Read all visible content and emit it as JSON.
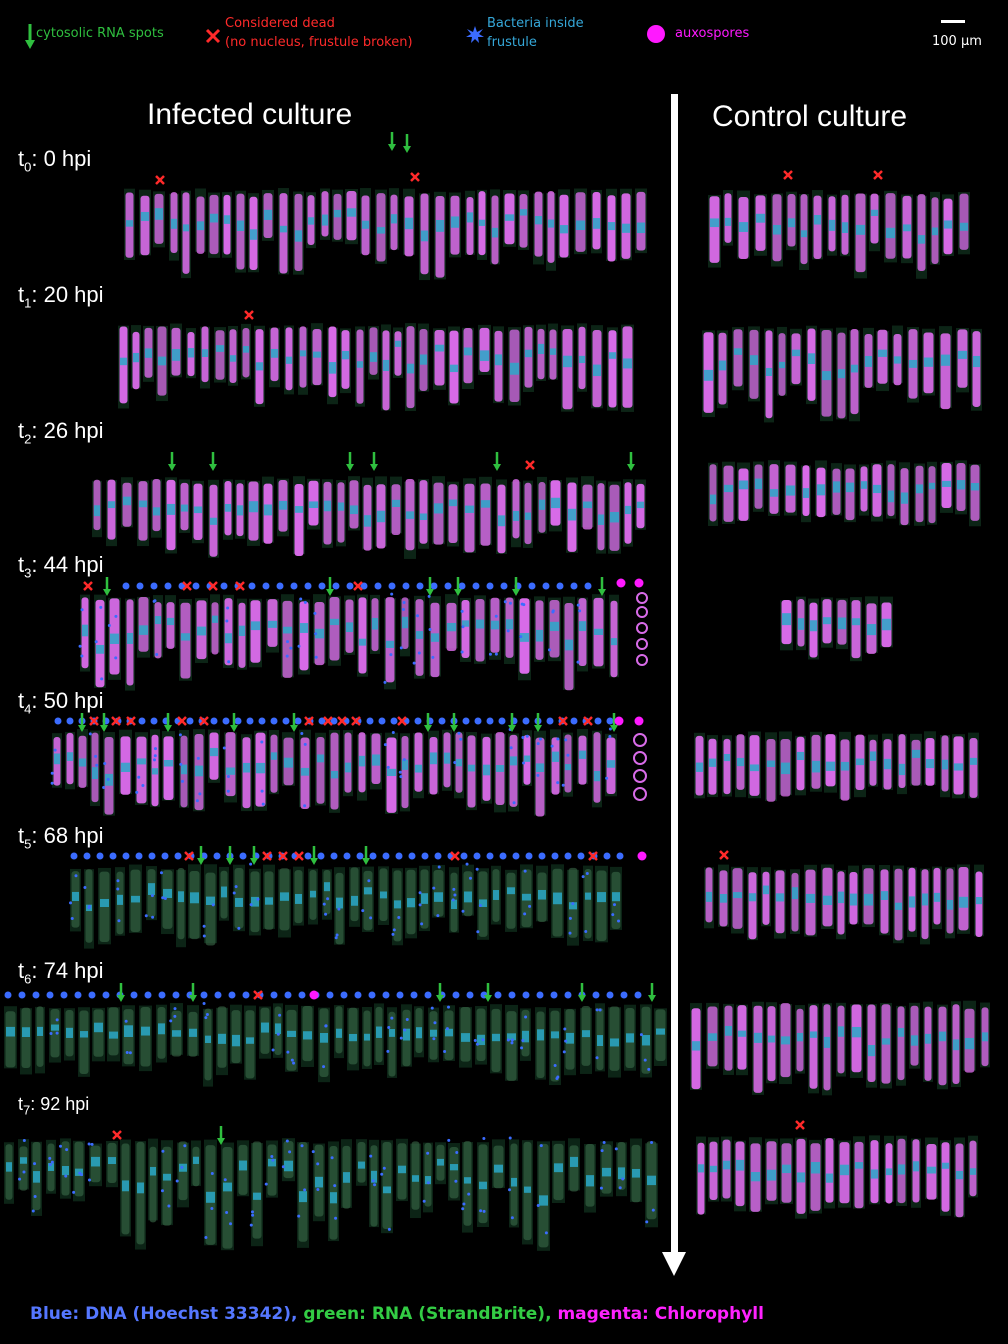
{
  "legend": {
    "rna": {
      "label": "cytosolic RNA spots",
      "color": "#2fbf3f"
    },
    "dead": {
      "label_line1": "Considered dead",
      "label_line2": "(no nucleus, frustule broken)",
      "color": "#ff2a2a"
    },
    "bacteria": {
      "label_line1": "Bacteria inside",
      "label_line2": "frustule",
      "color": "#3b6cff"
    },
    "auxospores": {
      "label": "auxospores",
      "color": "#ff19ff"
    }
  },
  "scale_bar": {
    "label": "100 µm"
  },
  "panels": {
    "infected": {
      "title": "Infected culture"
    },
    "control": {
      "title": "Control culture"
    }
  },
  "timepoints": [
    {
      "sub": "0",
      "label": ": 0 hpi"
    },
    {
      "sub": "1",
      "label": ": 20 hpi"
    },
    {
      "sub": "2",
      "label": ": 26 hpi"
    },
    {
      "sub": "3",
      "label": ": 44 hpi"
    },
    {
      "sub": "4",
      "label": ": 50 hpi"
    },
    {
      "sub": "5",
      "label": ": 68 hpi"
    },
    {
      "sub": "6",
      "label": ": 74 hpi"
    },
    {
      "sub": "7",
      "label": ": 92 hpi"
    }
  ],
  "footer": {
    "blue": "Blue: DNA (Hoechst 33342),",
    "green": "green: RNA (StrandBrite),",
    "magenta": "magenta: Chlorophyll",
    "blue_color": "#5577ff",
    "green_color": "#33cc44",
    "magenta_color": "#ff22ff"
  },
  "colors": {
    "cell_chloro": "#d86be8",
    "cell_dna": "#2aa8c8",
    "cell_bg": "#0f2a1a",
    "background": "#000000"
  }
}
